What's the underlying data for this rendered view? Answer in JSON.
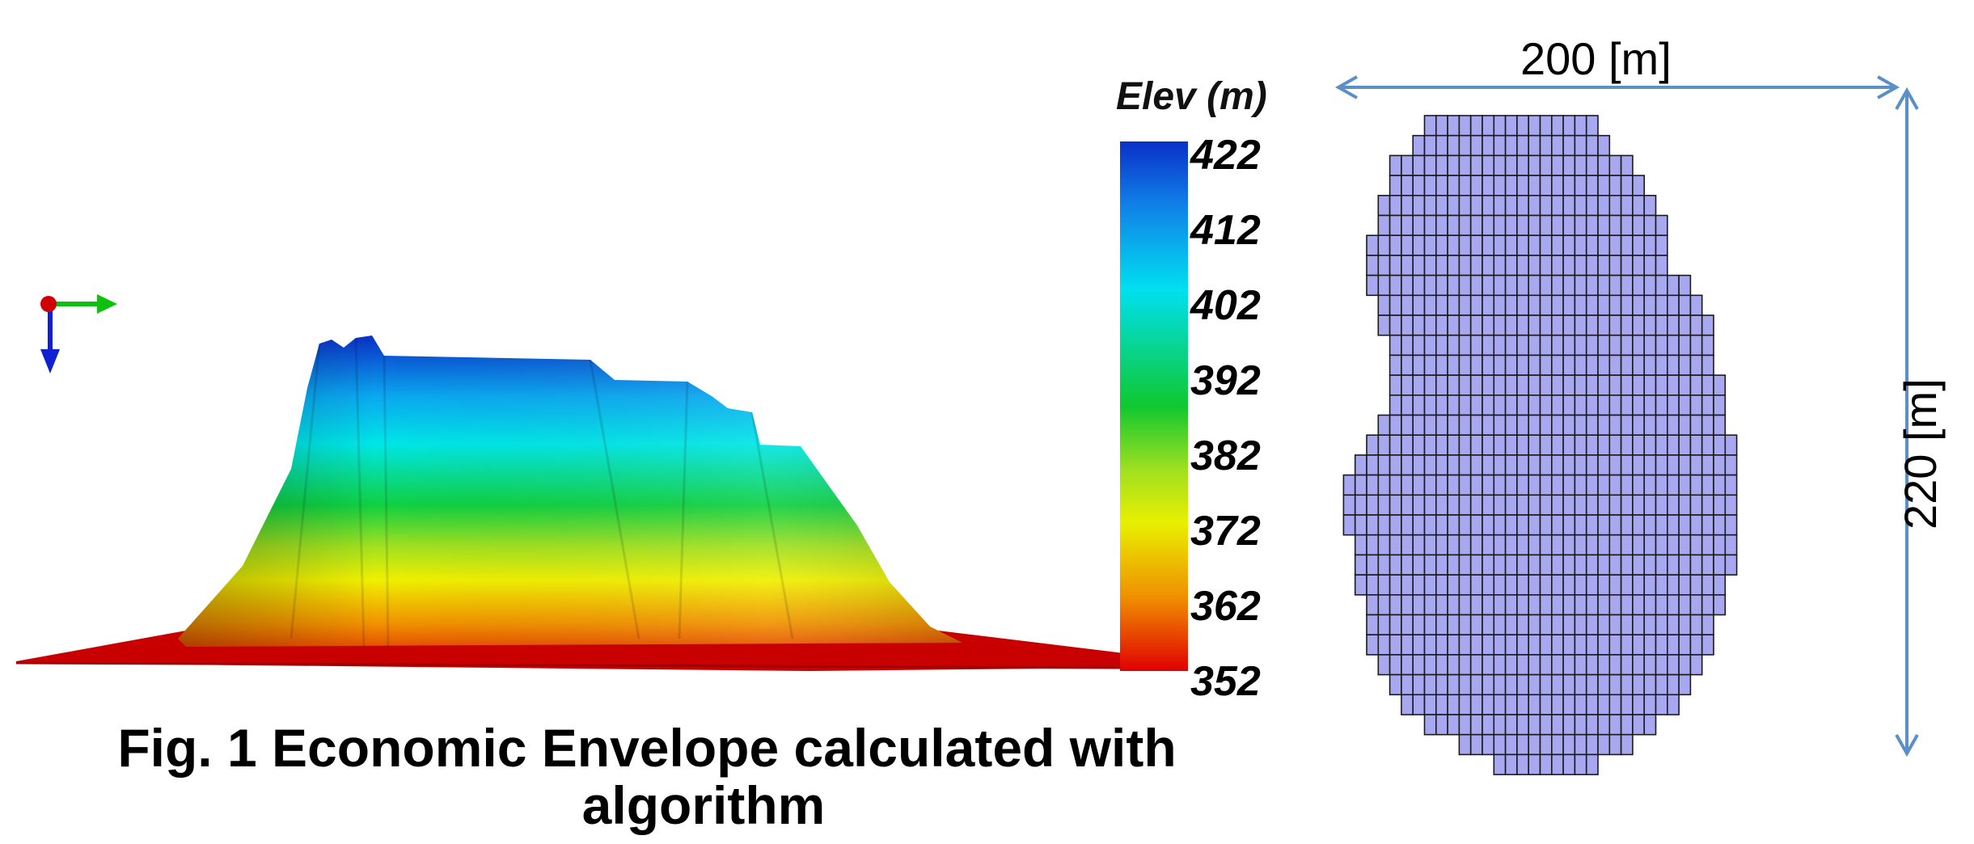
{
  "figure": {
    "caption_line1": "Fig. 1 Economic Envelope calculated with",
    "caption_line2": "algorithm"
  },
  "color_scale": {
    "title": "Elev (m)",
    "ticks": [
      "422",
      "412",
      "402",
      "392",
      "382",
      "372",
      "362",
      "352"
    ],
    "colors": [
      "#0a30c8",
      "#00e0f0",
      "#10c830",
      "#e8f000",
      "#f08000",
      "#e00000"
    ]
  },
  "axes_triad": {
    "x_color": "#d00000",
    "y_color": "#10c010",
    "z_color": "#1020d0"
  },
  "footprint": {
    "width_label": "200 [m]",
    "height_label": "220 [m]",
    "cell_fill": "#a8a8f0",
    "cell_stroke": "#1a1a1a",
    "arrow_color": "#5a8fc8"
  }
}
